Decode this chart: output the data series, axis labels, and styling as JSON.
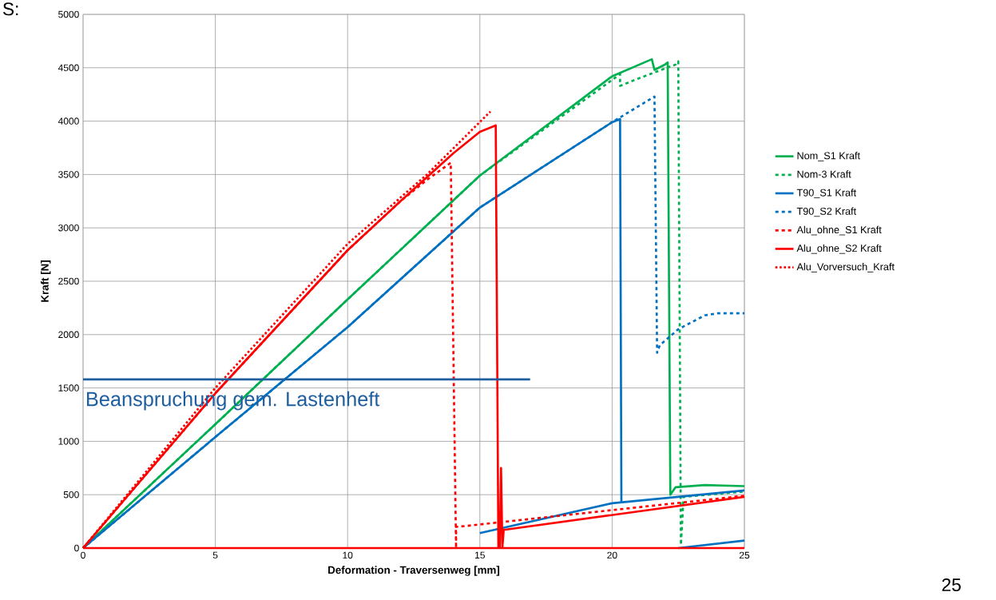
{
  "chart_data": {
    "type": "line",
    "xlabel": "Deformation - Traversenweg [mm]",
    "ylabel": "Kraft [N]",
    "xlim": [
      0,
      25
    ],
    "xticks": [
      0,
      5,
      10,
      15,
      20,
      25
    ],
    "ylim": [
      0,
      5000
    ],
    "yticks": [
      0,
      500,
      1000,
      1500,
      2000,
      2500,
      3000,
      3500,
      4000,
      4500,
      5000
    ],
    "grid": true,
    "legend": "right",
    "marker": "none",
    "series": [
      {
        "name": "Nom_S1 Kraft",
        "color": "#00b050",
        "line_style": "solid",
        "x": [
          0,
          5,
          10,
          15,
          20,
          21.5,
          21.6,
          22.0,
          22.1,
          22.2,
          22.4,
          23.5,
          25
        ],
        "values": [
          0,
          1160,
          2330,
          3490,
          4420,
          4580,
          4480,
          4530,
          4550,
          500,
          570,
          590,
          580
        ]
      },
      {
        "name": "Nom-3 Kraft",
        "color": "#00b050",
        "line_style": "dashed",
        "x": [
          0,
          5,
          10,
          15,
          20.3,
          20.3,
          21.0,
          22.4,
          22.5,
          22.6,
          22.7,
          25
        ],
        "values": [
          0,
          1160,
          2330,
          3490,
          4440,
          4330,
          4400,
          4530,
          4560,
          30,
          480,
          530
        ]
      },
      {
        "name": "T90_S1 Kraft",
        "color": "#0070c0",
        "line_style": "solid",
        "x": [
          0,
          5,
          10,
          15,
          20,
          20.3,
          20.35,
          null,
          15,
          20,
          25,
          null,
          22.5,
          25
        ],
        "values": [
          0,
          1040,
          2070,
          3190,
          3990,
          4020,
          420,
          null,
          140,
          420,
          540,
          null,
          0,
          70
        ]
      },
      {
        "name": "T90_S2 Kraft",
        "color": "#0070c0",
        "line_style": "dashed",
        "x": [
          0,
          5,
          10,
          15,
          20,
          21.6,
          21.7,
          21.8,
          22.5,
          23.5,
          24,
          25
        ],
        "values": [
          0,
          1040,
          2070,
          3190,
          3990,
          4230,
          1830,
          1900,
          2050,
          2180,
          2200,
          2200
        ]
      },
      {
        "name": "Alu_ohne_S1 Kraft",
        "color": "#ff0000",
        "line_style": "dashed",
        "x": [
          0,
          5,
          10,
          12,
          13,
          13.9,
          14.1,
          14.1,
          14.2,
          25
        ],
        "values": [
          0,
          1450,
          2790,
          3250,
          3450,
          3610,
          0,
          200,
          200,
          490
        ]
      },
      {
        "name": "Alu_ohne_S2 Kraft",
        "color": "#ff0000",
        "line_style": "solid",
        "x": [
          0,
          5,
          10,
          12,
          14,
          15,
          15.6,
          15.7,
          15.75,
          15.8,
          15.85,
          15.9,
          25,
          null,
          0,
          25
        ],
        "values": [
          0,
          1450,
          2790,
          3250,
          3700,
          3900,
          3960,
          0,
          0,
          750,
          0,
          170,
          480,
          null,
          0,
          0
        ]
      },
      {
        "name": "Alu_Vorversuch_Kraft",
        "color": "#ff0000",
        "line_style": "dotted",
        "x": [
          0,
          5,
          10,
          13,
          15.4
        ],
        "values": [
          0,
          1500,
          2850,
          3500,
          4090
        ]
      },
      {
        "color": "#1f5fa0",
        "line_style": "solid",
        "x": [
          0,
          16.9
        ],
        "values": [
          1580,
          1580
        ]
      }
    ],
    "annotations": [
      "Beanspruchung gem. Lastenheft",
      "S:",
      "25"
    ]
  }
}
